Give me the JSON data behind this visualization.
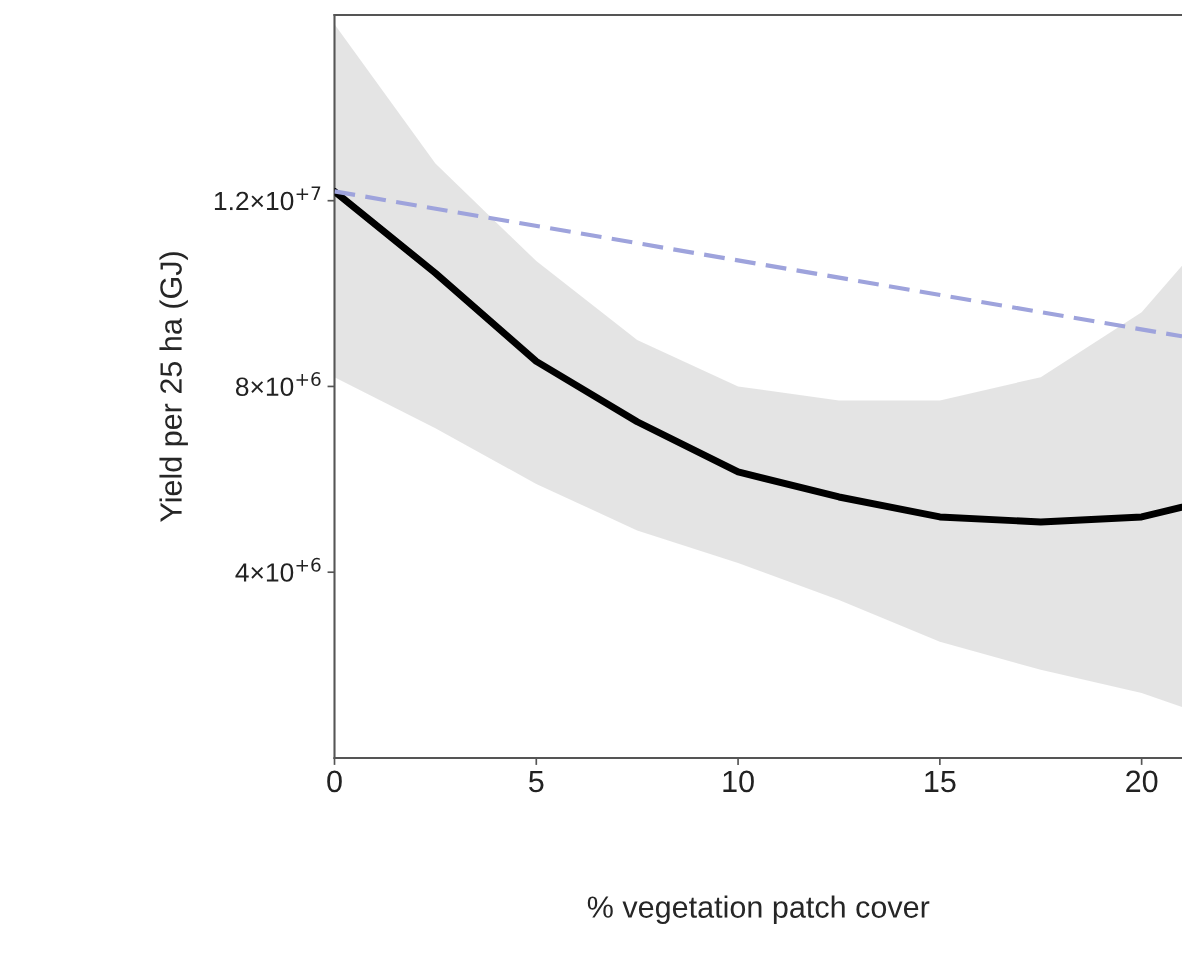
{
  "chart_data": {
    "type": "line",
    "xlabel": "% vegetation patch cover",
    "ylabel": "Yield per 25 ha (GJ)",
    "series": [
      {
        "color": "#000000",
        "line_style": "solid",
        "x": [
          0,
          2.5,
          5,
          7.5,
          10,
          12.5,
          15,
          17.5,
          20,
          21
        ],
        "values": [
          12200000,
          10440000,
          8540000,
          7240000,
          6160000,
          5620000,
          5190000,
          5080000,
          5190000,
          5400000
        ],
        "lower": [
          8200000,
          7100000,
          5900000,
          4900000,
          4200000,
          3400000,
          2500000,
          1900000,
          1400000,
          1100000
        ],
        "upper": [
          15800000,
          12800000,
          10700000,
          9000000,
          8000000,
          7700000,
          7700000,
          8200000,
          9600000,
          10600000
        ]
      },
      {
        "color": "#9ea3dc",
        "line_style": "dashed",
        "x": [
          0,
          21
        ],
        "values": [
          12200000,
          9080000
        ]
      }
    ],
    "xlim": [
      0,
      21
    ],
    "xticks": [
      0,
      5,
      10,
      15,
      20
    ],
    "ylim": [
      0,
      16000000
    ],
    "yticks": [
      {
        "value": 4000000,
        "label": "4×10$^{+6}$"
      },
      {
        "value": 8000000,
        "label": "8×10$^{+6}$"
      },
      {
        "value": 12000000,
        "label": "1.2×10$^{+7}$"
      }
    ],
    "grid": false,
    "marker": "none"
  }
}
